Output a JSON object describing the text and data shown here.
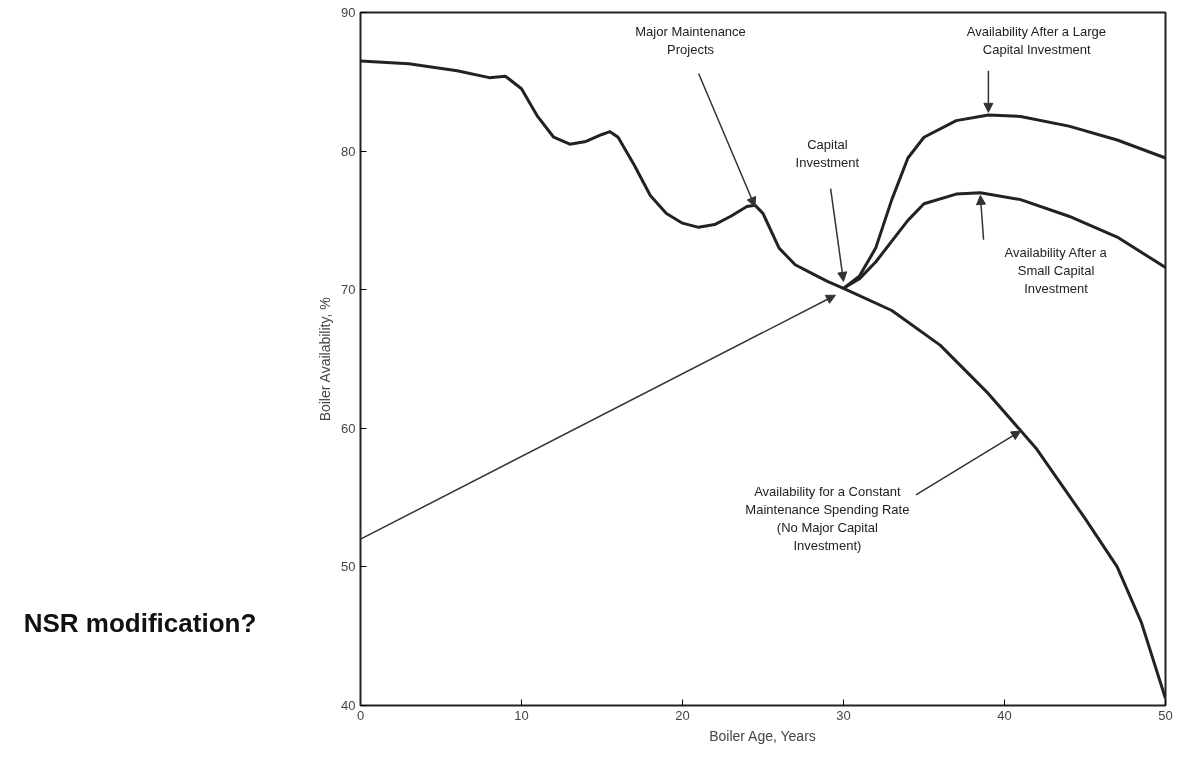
{
  "chart_data": {
    "type": "line",
    "xlabel": "Boiler Age, Years",
    "ylabel": "Boiler Availability, %",
    "xlim": [
      0,
      50
    ],
    "ylim": [
      40,
      90
    ],
    "xticks": [
      0,
      10,
      20,
      30,
      40,
      50
    ],
    "yticks": [
      40,
      50,
      60,
      70,
      80,
      90
    ],
    "grid": false,
    "series": [
      {
        "color": "#222222",
        "x": [
          0,
          3,
          6,
          8,
          9,
          10,
          11,
          12,
          13,
          14,
          15,
          15.5,
          16,
          17,
          18,
          19,
          20,
          21,
          22,
          23,
          24,
          24.5,
          25,
          26,
          27,
          28,
          29,
          30,
          33,
          36,
          39,
          42,
          45,
          47,
          48.5,
          50
        ],
        "values": [
          86.5,
          86.3,
          85.8,
          85.3,
          85.4,
          84.5,
          82.5,
          81,
          80.5,
          80.7,
          81.2,
          81.4,
          81,
          79,
          76.8,
          75.5,
          74.8,
          74.5,
          74.7,
          75.3,
          76,
          76.1,
          75.5,
          73,
          71.8,
          71.2,
          70.6,
          70.1,
          68.5,
          66,
          62.5,
          58.5,
          53.5,
          50,
          46,
          40.5
        ]
      },
      {
        "color": "#222222",
        "x": [
          30,
          31,
          32,
          33,
          34,
          35,
          37,
          39,
          41,
          44,
          47,
          50
        ],
        "values": [
          70.1,
          71,
          73,
          76.5,
          79.5,
          81,
          82.2,
          82.6,
          82.5,
          81.8,
          80.8,
          79.5
        ]
      },
      {
        "color": "#222222",
        "x": [
          30,
          31,
          32,
          33,
          34,
          35,
          37,
          38.5,
          41,
          44,
          47,
          50
        ],
        "values": [
          70.1,
          70.8,
          72,
          73.5,
          75,
          76.2,
          76.9,
          77,
          76.5,
          75.3,
          73.8,
          71.6
        ]
      }
    ],
    "annotations": [
      {
        "text": "Major Maintenance Projects",
        "x": 24.5,
        "y": 76
      },
      "Capital Investment",
      {
        "text": "Availability After a Large Capital Investment",
        "x": 39,
        "y": 82.8
      },
      "Availability After a Small Capital Investment",
      {
        "text": "Availability for a Constant Maintenance Spending Rate (No Major Capital Investment)",
        "x": 41,
        "y": 59.8
      },
      "NSR modification?"
    ]
  }
}
